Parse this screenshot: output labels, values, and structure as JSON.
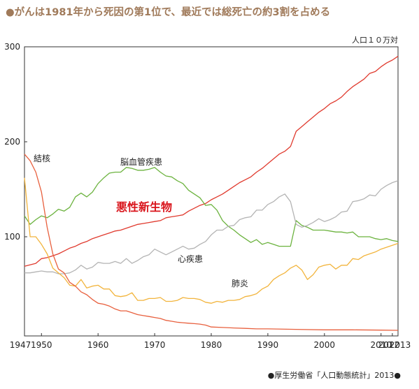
{
  "title": "●がんは1981年から死因の第1位で、最近では総死亡の約3割を占める",
  "unit_label": "人口１０万対",
  "source": "●厚生労働省「人口動態統計」2013●",
  "chart_data": {
    "type": "line",
    "title": "がんは1981年から死因の第1位で、最近では総死亡の約3割を占める",
    "ylabel": "人口10万対",
    "xlabel": "",
    "xlim": [
      1947,
      2013
    ],
    "ylim": [
      0,
      300
    ],
    "grid": false,
    "x_ticks": [
      "1947",
      "1950",
      "1960",
      "1970",
      "1980",
      "1990",
      "2000",
      "2010",
      "2012",
      "2013"
    ],
    "x_tick_values": [
      1947,
      1950,
      1960,
      1970,
      1980,
      1990,
      2000,
      2010,
      2012,
      2013
    ],
    "y_ticks": [
      "300",
      "200",
      "100"
    ],
    "y_tick_values": [
      300,
      200,
      100
    ],
    "series": [
      {
        "name": "悪性新生物",
        "color": "#e03a2e",
        "x": [
          1947,
          1949,
          1950,
          1951,
          1952,
          1953,
          1954,
          1955,
          1956,
          1957,
          1958,
          1959,
          1960,
          1961,
          1962,
          1963,
          1964,
          1965,
          1966,
          1967,
          1968,
          1969,
          1970,
          1971,
          1972,
          1973,
          1974,
          1975,
          1976,
          1977,
          1978,
          1979,
          1980,
          1981,
          1982,
          1983,
          1984,
          1985,
          1986,
          1987,
          1988,
          1989,
          1990,
          1991,
          1992,
          1993,
          1994,
          1995,
          1996,
          1997,
          1998,
          1999,
          2000,
          2001,
          2002,
          2003,
          2004,
          2005,
          2006,
          2007,
          2008,
          2009,
          2010,
          2011,
          2012,
          2013
        ],
        "y": [
          69,
          72,
          77,
          78,
          80,
          82,
          85,
          88,
          90,
          93,
          95,
          98,
          100,
          102,
          104,
          106,
          107,
          109,
          111,
          113,
          114,
          115,
          116,
          117,
          120,
          121,
          122,
          123,
          127,
          130,
          133,
          135,
          139,
          142,
          145,
          149,
          153,
          157,
          160,
          163,
          168,
          172,
          177,
          182,
          187,
          190,
          195,
          211,
          216,
          221,
          226,
          231,
          235,
          240,
          243,
          247,
          253,
          258,
          262,
          266,
          272,
          274,
          279,
          283,
          286,
          290
        ]
      },
      {
        "name": "脳血管疾患",
        "color": "#6cb33f",
        "x": [
          1947,
          1948,
          1949,
          1950,
          1951,
          1952,
          1953,
          1954,
          1955,
          1956,
          1957,
          1958,
          1959,
          1960,
          1961,
          1962,
          1963,
          1964,
          1965,
          1966,
          1967,
          1968,
          1969,
          1970,
          1971,
          1972,
          1973,
          1974,
          1975,
          1976,
          1977,
          1978,
          1979,
          1980,
          1981,
          1982,
          1983,
          1984,
          1985,
          1986,
          1987,
          1988,
          1989,
          1990,
          1991,
          1992,
          1993,
          1994,
          1995,
          1996,
          1997,
          1998,
          1999,
          2000,
          2001,
          2002,
          2003,
          2004,
          2005,
          2006,
          2007,
          2008,
          2009,
          2010,
          2011,
          2012,
          2013
        ],
        "y": [
          122,
          113,
          118,
          122,
          120,
          124,
          129,
          127,
          131,
          142,
          146,
          142,
          147,
          156,
          162,
          167,
          168,
          168,
          173,
          172,
          170,
          170,
          171,
          173,
          168,
          164,
          163,
          159,
          156,
          149,
          145,
          141,
          133,
          134,
          128,
          117,
          111,
          107,
          102,
          98,
          94,
          97,
          92,
          94,
          92,
          90,
          90,
          90,
          117,
          112,
          110,
          107,
          107,
          107,
          106,
          105,
          105,
          104,
          105,
          100,
          100,
          100,
          98,
          97,
          98,
          96,
          95
        ]
      },
      {
        "name": "心疾患",
        "color": "#b4b4b4",
        "x": [
          1947,
          1948,
          1949,
          1950,
          1951,
          1952,
          1953,
          1954,
          1955,
          1956,
          1957,
          1958,
          1959,
          1960,
          1961,
          1962,
          1963,
          1964,
          1965,
          1966,
          1967,
          1968,
          1969,
          1970,
          1971,
          1972,
          1973,
          1974,
          1975,
          1976,
          1977,
          1978,
          1979,
          1980,
          1981,
          1982,
          1983,
          1984,
          1985,
          1986,
          1987,
          1988,
          1989,
          1990,
          1991,
          1992,
          1993,
          1994,
          1995,
          1996,
          1997,
          1998,
          1999,
          2000,
          2001,
          2002,
          2003,
          2004,
          2005,
          2006,
          2007,
          2008,
          2009,
          2010,
          2011,
          2012,
          2013
        ],
        "y": [
          62,
          62,
          63,
          64,
          63,
          63,
          61,
          61,
          62,
          65,
          70,
          66,
          68,
          73,
          72,
          72,
          74,
          72,
          77,
          72,
          75,
          79,
          81,
          87,
          84,
          81,
          84,
          87,
          90,
          87,
          88,
          92,
          95,
          102,
          107,
          107,
          111,
          112,
          118,
          120,
          121,
          128,
          128,
          134,
          137,
          142,
          145,
          137,
          113,
          110,
          112,
          115,
          119,
          116,
          118,
          121,
          126,
          127,
          137,
          138,
          140,
          144,
          143,
          150,
          154,
          157,
          159
        ]
      },
      {
        "name": "肺炎",
        "color": "#f2b43c",
        "x": [
          1947,
          1948,
          1949,
          1950,
          1951,
          1952,
          1953,
          1954,
          1955,
          1956,
          1957,
          1958,
          1959,
          1960,
          1961,
          1962,
          1963,
          1964,
          1965,
          1966,
          1967,
          1968,
          1969,
          1970,
          1971,
          1972,
          1973,
          1974,
          1975,
          1976,
          1977,
          1978,
          1979,
          1980,
          1981,
          1982,
          1983,
          1984,
          1985,
          1986,
          1987,
          1988,
          1989,
          1990,
          1991,
          1992,
          1993,
          1994,
          1995,
          1996,
          1997,
          1998,
          1999,
          2000,
          2001,
          2002,
          2003,
          2004,
          2005,
          2006,
          2007,
          2008,
          2009,
          2010,
          2011,
          2012,
          2013
        ],
        "y": [
          162,
          100,
          100,
          92,
          82,
          67,
          62,
          57,
          49,
          48,
          55,
          46,
          48,
          49,
          45,
          45,
          38,
          37,
          38,
          41,
          33,
          33,
          35,
          35,
          36,
          32,
          32,
          33,
          36,
          35,
          35,
          34,
          31,
          30,
          32,
          31,
          33,
          33,
          34,
          37,
          38,
          40,
          45,
          48,
          55,
          59,
          62,
          67,
          70,
          65,
          55,
          60,
          68,
          70,
          71,
          66,
          70,
          70,
          77,
          76,
          80,
          82,
          84,
          87,
          89,
          91,
          93
        ]
      },
      {
        "name": "結核",
        "color": "#e8603e",
        "x": [
          1947,
          1948,
          1949,
          1950,
          1951,
          1952,
          1953,
          1954,
          1955,
          1956,
          1957,
          1958,
          1959,
          1960,
          1961,
          1962,
          1963,
          1964,
          1965,
          1966,
          1967,
          1968,
          1969,
          1970,
          1971,
          1972,
          1973,
          1974,
          1975,
          1976,
          1977,
          1978,
          1979,
          1980,
          1982,
          1984,
          1986,
          1988,
          1990,
          1995,
          2000,
          2005,
          2010,
          2013
        ],
        "y": [
          187,
          180,
          168,
          147,
          110,
          82,
          66,
          62,
          52,
          48,
          42,
          39,
          34,
          30,
          29,
          27,
          24,
          22,
          22,
          20,
          18,
          17,
          16,
          15,
          14,
          12,
          11,
          10,
          9.5,
          9,
          8.5,
          8,
          7,
          5,
          4.5,
          4,
          3.5,
          3,
          3,
          2.5,
          2,
          2,
          1.7,
          1.5
        ]
      }
    ],
    "annotations": [
      {
        "text": "結核",
        "series": "結核"
      },
      {
        "text": "脳血管疾患",
        "series": "脳血管疾患"
      },
      {
        "text": "悪性新生物",
        "series": "悪性新生物"
      },
      {
        "text": "心疾患",
        "series": "心疾患"
      },
      {
        "text": "肺炎",
        "series": "肺炎"
      }
    ],
    "legend": "none"
  }
}
